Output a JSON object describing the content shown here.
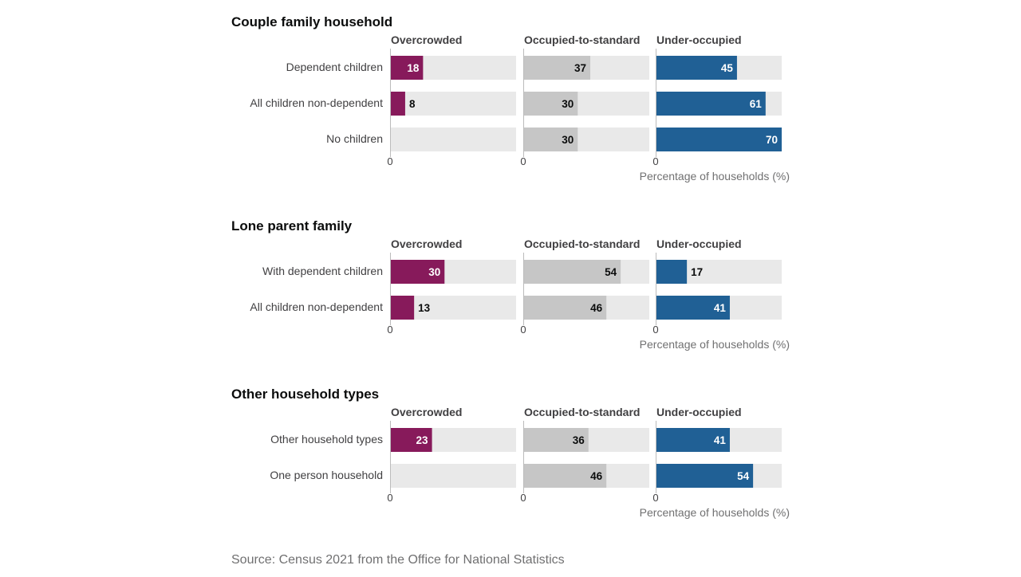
{
  "chart_data": [
    {
      "type": "bar",
      "title": "Couple family household",
      "panels": [
        "Overcrowded",
        "Occupied-to-standard",
        "Under-occupied"
      ],
      "categories": [
        "Dependent children",
        "All children non-dependent",
        "No children"
      ],
      "series": [
        {
          "name": "Overcrowded",
          "values": [
            18,
            8,
            null
          ],
          "color": "#871a5b"
        },
        {
          "name": "Occupied-to-standard",
          "values": [
            37,
            30,
            30
          ],
          "color": "#c6c6c6"
        },
        {
          "name": "Under-occupied",
          "values": [
            45,
            61,
            70
          ],
          "color": "#206095"
        }
      ],
      "xlim": [
        0,
        70
      ],
      "tick_labels": [
        "0",
        "0",
        "0"
      ],
      "xlabel": "Percentage of households (%)"
    },
    {
      "type": "bar",
      "title": "Lone parent family",
      "panels": [
        "Overcrowded",
        "Occupied-to-standard",
        "Under-occupied"
      ],
      "categories": [
        "With dependent children",
        "All children non-dependent"
      ],
      "series": [
        {
          "name": "Overcrowded",
          "values": [
            30,
            13
          ],
          "color": "#871a5b"
        },
        {
          "name": "Occupied-to-standard",
          "values": [
            54,
            46
          ],
          "color": "#c6c6c6"
        },
        {
          "name": "Under-occupied",
          "values": [
            17,
            41
          ],
          "color": "#206095"
        }
      ],
      "xlim": [
        0,
        70
      ],
      "tick_labels": [
        "0",
        "0",
        "0"
      ],
      "xlabel": "Percentage of households (%)"
    },
    {
      "type": "bar",
      "title": "Other household types",
      "panels": [
        "Overcrowded",
        "Occupied-to-standard",
        "Under-occupied"
      ],
      "categories": [
        "Other household types",
        "One person household"
      ],
      "series": [
        {
          "name": "Overcrowded",
          "values": [
            23,
            null
          ],
          "color": "#871a5b"
        },
        {
          "name": "Occupied-to-standard",
          "values": [
            36,
            46
          ],
          "color": "#c6c6c6"
        },
        {
          "name": "Under-occupied",
          "values": [
            41,
            54
          ],
          "color": "#206095"
        }
      ],
      "xlim": [
        0,
        70
      ],
      "tick_labels": [
        "0",
        "0",
        "0"
      ],
      "xlabel": "Percentage of households (%)"
    }
  ],
  "source": "Source: Census 2021 from the Office for National Statistics",
  "colors": {
    "track": "#e9e9e9",
    "axis": "#bbbbbb",
    "text_dark": "#0b0c0c",
    "text_light": "#ffffff"
  }
}
